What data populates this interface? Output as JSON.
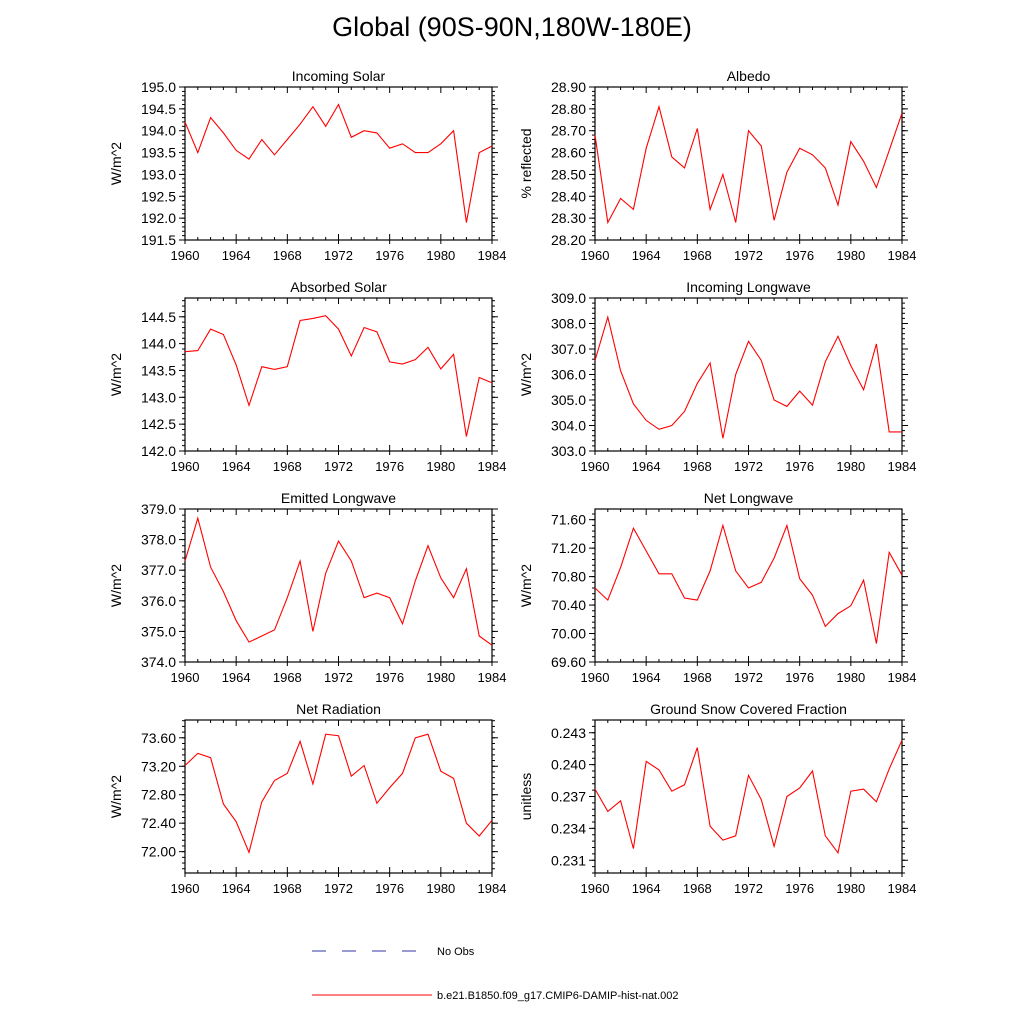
{
  "title": "Global (90S-90N,180W-180E)",
  "legend": [
    {
      "label": "No Obs",
      "color": "#3333aa",
      "style": "dashed"
    },
    {
      "label": "b.e21.B1850.f09_g17.CMIP6-DAMIP-hist-nat.002",
      "color": "#ff0000",
      "style": "solid"
    }
  ],
  "chart_data": [
    {
      "type": "line",
      "title": "Incoming Solar",
      "xlabel": "",
      "ylabel": "W/m^2",
      "xlim": [
        1960,
        1984
      ],
      "ylim": [
        191.5,
        195.0
      ],
      "xticks": [
        1960,
        1964,
        1968,
        1972,
        1976,
        1980,
        1984
      ],
      "yticks": [
        191.5,
        192.0,
        192.5,
        193.0,
        193.5,
        194.0,
        194.5,
        195.0
      ],
      "ydec": 1,
      "series": [
        {
          "color": "#ff0000",
          "x": [
            1960,
            1961,
            1962,
            1963,
            1964,
            1965,
            1966,
            1967,
            1968,
            1969,
            1970,
            1971,
            1972,
            1973,
            1974,
            1975,
            1976,
            1977,
            1978,
            1979,
            1980,
            1981,
            1982,
            1983,
            1984
          ],
          "y": [
            194.2,
            193.5,
            194.3,
            193.95,
            193.55,
            193.35,
            193.8,
            193.45,
            193.8,
            194.15,
            194.55,
            194.1,
            194.6,
            193.85,
            194.0,
            193.95,
            193.6,
            193.7,
            193.5,
            193.5,
            193.7,
            194.0,
            191.9,
            193.5,
            193.65
          ]
        }
      ]
    },
    {
      "type": "line",
      "title": "Albedo",
      "xlabel": "",
      "ylabel": "% reflected",
      "xlim": [
        1960,
        1984
      ],
      "ylim": [
        28.2,
        28.9
      ],
      "xticks": [
        1960,
        1964,
        1968,
        1972,
        1976,
        1980,
        1984
      ],
      "yticks": [
        28.2,
        28.3,
        28.4,
        28.5,
        28.6,
        28.7,
        28.8,
        28.9
      ],
      "ydec": 2,
      "series": [
        {
          "color": "#ff0000",
          "x": [
            1960,
            1961,
            1962,
            1963,
            1964,
            1965,
            1966,
            1967,
            1968,
            1969,
            1970,
            1971,
            1972,
            1973,
            1974,
            1975,
            1976,
            1977,
            1978,
            1979,
            1980,
            1981,
            1982,
            1983,
            1984
          ],
          "y": [
            28.68,
            28.28,
            28.39,
            28.34,
            28.62,
            28.81,
            28.58,
            28.53,
            28.71,
            28.34,
            28.5,
            28.28,
            28.7,
            28.63,
            28.29,
            28.51,
            28.62,
            28.59,
            28.53,
            28.36,
            28.65,
            28.56,
            28.44,
            28.61,
            28.78
          ]
        }
      ]
    },
    {
      "type": "line",
      "title": "Absorbed Solar",
      "xlabel": "",
      "ylabel": "W/m^2",
      "xlim": [
        1960,
        1984
      ],
      "ylim": [
        142.0,
        144.85
      ],
      "xticks": [
        1960,
        1964,
        1968,
        1972,
        1976,
        1980,
        1984
      ],
      "yticks": [
        142.0,
        142.5,
        143.0,
        143.5,
        144.0,
        144.5
      ],
      "ydec": 1,
      "series": [
        {
          "color": "#ff0000",
          "x": [
            1960,
            1961,
            1962,
            1963,
            1964,
            1965,
            1966,
            1967,
            1968,
            1969,
            1970,
            1971,
            1972,
            1973,
            1974,
            1975,
            1976,
            1977,
            1978,
            1979,
            1980,
            1981,
            1982,
            1983,
            1984
          ],
          "y": [
            143.85,
            143.87,
            144.27,
            144.17,
            143.6,
            142.85,
            143.57,
            143.52,
            143.57,
            144.43,
            144.47,
            144.52,
            144.27,
            143.77,
            144.3,
            144.22,
            143.66,
            143.62,
            143.7,
            143.93,
            143.53,
            143.8,
            142.27,
            143.37,
            143.27
          ]
        }
      ]
    },
    {
      "type": "line",
      "title": "Incoming Longwave",
      "xlabel": "",
      "ylabel": "W/m^2",
      "xlim": [
        1960,
        1984
      ],
      "ylim": [
        303.0,
        309.0
      ],
      "xticks": [
        1960,
        1964,
        1968,
        1972,
        1976,
        1980,
        1984
      ],
      "yticks": [
        303.0,
        304.0,
        305.0,
        306.0,
        307.0,
        308.0,
        309.0
      ],
      "ydec": 1,
      "series": [
        {
          "color": "#ff0000",
          "x": [
            1960,
            1961,
            1962,
            1963,
            1964,
            1965,
            1966,
            1967,
            1968,
            1969,
            1970,
            1971,
            1972,
            1973,
            1974,
            1975,
            1976,
            1977,
            1978,
            1979,
            1980,
            1981,
            1982,
            1983,
            1984
          ],
          "y": [
            306.55,
            308.25,
            306.15,
            304.85,
            304.2,
            303.85,
            304.0,
            304.55,
            305.65,
            306.45,
            303.5,
            306.0,
            307.3,
            306.55,
            305.0,
            304.75,
            305.35,
            304.8,
            306.5,
            307.5,
            306.35,
            305.4,
            307.2,
            303.75,
            303.75
          ]
        }
      ]
    },
    {
      "type": "line",
      "title": "Emitted Longwave",
      "xlabel": "",
      "ylabel": "W/m^2",
      "xlim": [
        1960,
        1984
      ],
      "ylim": [
        374.0,
        379.0
      ],
      "xticks": [
        1960,
        1964,
        1968,
        1972,
        1976,
        1980,
        1984
      ],
      "yticks": [
        374.0,
        375.0,
        376.0,
        377.0,
        378.0,
        379.0
      ],
      "ydec": 1,
      "series": [
        {
          "color": "#ff0000",
          "x": [
            1960,
            1961,
            1962,
            1963,
            1964,
            1965,
            1966,
            1967,
            1968,
            1969,
            1970,
            1971,
            1972,
            1973,
            1974,
            1975,
            1976,
            1977,
            1978,
            1979,
            1980,
            1981,
            1982,
            1983,
            1984
          ],
          "y": [
            377.3,
            378.7,
            377.1,
            376.3,
            375.35,
            374.65,
            374.85,
            375.05,
            376.1,
            377.3,
            375.0,
            376.9,
            377.95,
            377.3,
            376.1,
            376.25,
            376.1,
            375.25,
            376.65,
            377.8,
            376.75,
            376.1,
            377.05,
            374.85,
            374.55
          ]
        }
      ]
    },
    {
      "type": "line",
      "title": "Net Longwave",
      "xlabel": "",
      "ylabel": "W/m^2",
      "xlim": [
        1960,
        1984
      ],
      "ylim": [
        69.6,
        71.75
      ],
      "xticks": [
        1960,
        1964,
        1968,
        1972,
        1976,
        1980,
        1984
      ],
      "yticks": [
        69.6,
        70.0,
        70.4,
        70.8,
        71.2,
        71.6
      ],
      "ydec": 2,
      "series": [
        {
          "color": "#ff0000",
          "x": [
            1960,
            1961,
            1962,
            1963,
            1964,
            1965,
            1966,
            1967,
            1968,
            1969,
            1970,
            1971,
            1972,
            1973,
            1974,
            1975,
            1976,
            1977,
            1978,
            1979,
            1980,
            1981,
            1982,
            1983,
            1984
          ],
          "y": [
            70.64,
            70.47,
            70.93,
            71.48,
            71.16,
            70.84,
            70.84,
            70.5,
            70.47,
            70.88,
            71.52,
            70.88,
            70.64,
            70.72,
            71.06,
            71.52,
            70.77,
            70.54,
            70.1,
            70.28,
            70.39,
            70.75,
            69.86,
            71.14,
            70.82
          ]
        }
      ]
    },
    {
      "type": "line",
      "title": "Net Radiation",
      "xlabel": "",
      "ylabel": "W/m^2",
      "xlim": [
        1960,
        1984
      ],
      "ylim": [
        71.7,
        73.85
      ],
      "xticks": [
        1960,
        1964,
        1968,
        1972,
        1976,
        1980,
        1984
      ],
      "yticks": [
        72.0,
        72.4,
        72.8,
        73.2,
        73.6
      ],
      "ydec": 2,
      "series": [
        {
          "color": "#ff0000",
          "x": [
            1960,
            1961,
            1962,
            1963,
            1964,
            1965,
            1966,
            1967,
            1968,
            1969,
            1970,
            1971,
            1972,
            1973,
            1974,
            1975,
            1976,
            1977,
            1978,
            1979,
            1980,
            1981,
            1982,
            1983,
            1984
          ],
          "y": [
            73.21,
            73.38,
            73.32,
            72.67,
            72.42,
            71.99,
            72.7,
            73.0,
            73.1,
            73.55,
            72.95,
            73.65,
            73.63,
            73.06,
            73.21,
            72.68,
            72.9,
            73.1,
            73.6,
            73.65,
            73.13,
            73.03,
            72.4,
            72.22,
            72.44
          ]
        }
      ]
    },
    {
      "type": "line",
      "title": "Ground Snow Covered Fraction",
      "xlabel": "",
      "ylabel": "unitless",
      "xlim": [
        1960,
        1984
      ],
      "ylim": [
        0.2298,
        0.2442
      ],
      "xticks": [
        1960,
        1964,
        1968,
        1972,
        1976,
        1980,
        1984
      ],
      "yticks": [
        0.231,
        0.234,
        0.237,
        0.24,
        0.243
      ],
      "ydec": 3,
      "series": [
        {
          "color": "#ff0000",
          "x": [
            1960,
            1961,
            1962,
            1963,
            1964,
            1965,
            1966,
            1967,
            1968,
            1969,
            1970,
            1971,
            1972,
            1973,
            1974,
            1975,
            1976,
            1977,
            1978,
            1979,
            1980,
            1981,
            1982,
            1983,
            1984
          ],
          "y": [
            0.2377,
            0.2356,
            0.2366,
            0.2321,
            0.2403,
            0.2395,
            0.2375,
            0.2381,
            0.2416,
            0.2342,
            0.2329,
            0.2333,
            0.239,
            0.2367,
            0.2323,
            0.237,
            0.2378,
            0.2394,
            0.2333,
            0.2317,
            0.2375,
            0.2377,
            0.2365,
            0.2396,
            0.2423
          ]
        }
      ]
    }
  ]
}
